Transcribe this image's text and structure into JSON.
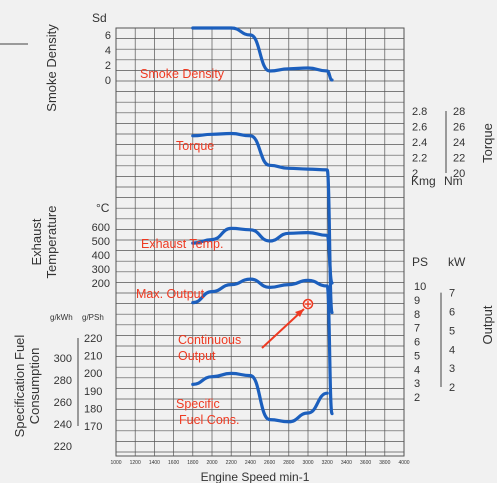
{
  "chart_data": {
    "type": "line",
    "title": "",
    "x_axis": {
      "label": "Engine Speed min-1",
      "ticks": [
        1000,
        1200,
        1400,
        1600,
        1800,
        2000,
        2200,
        2400,
        2600,
        2800,
        3000,
        3200,
        3400,
        3600,
        3800,
        4000
      ],
      "tick_labels": [
        "1000",
        "1200",
        "1400",
        "1600",
        "1800",
        "2000",
        "2200",
        "2400",
        "2600",
        "2800",
        "3000",
        "3200",
        "3400",
        "3600",
        "3800",
        "4000"
      ],
      "range": [
        1000,
        4000
      ]
    },
    "panels": {
      "smoke": {
        "label": "Smoke Density",
        "unit": "Sd",
        "ticks": [
          "6",
          "4",
          "2",
          "0"
        ]
      },
      "torque": {
        "label": "Torque",
        "unit_kgm": "Kmg",
        "unit_nm": "Nm",
        "kgm_ticks": [
          "2.8",
          "2.6",
          "2.4",
          "2.2",
          "2"
        ],
        "nm_ticks": [
          "28",
          "26",
          "24",
          "22",
          "20"
        ]
      },
      "exhaust": {
        "label_line1": "Exhaust",
        "label_line2": "Temperature",
        "unit": "°C",
        "ticks": [
          "600",
          "500",
          "400",
          "300",
          "200"
        ]
      },
      "output": {
        "label": "Output",
        "unit_ps": "PS",
        "unit_kw": "kW",
        "ps_ticks": [
          "10",
          "9",
          "8",
          "7",
          "6",
          "5",
          "4",
          "3",
          "2"
        ],
        "kw_ticks": [
          "7",
          "6",
          "5",
          "4",
          "3",
          "2"
        ]
      },
      "fuel": {
        "label_line1": "Specification Fuel",
        "label_line2": "Consumption",
        "unit_kwh": "g/kWh",
        "unit_psh": "g/PSh",
        "kwh_ticks": [
          "300",
          "280",
          "260",
          "240",
          "220"
        ],
        "psh_ticks": [
          "220",
          "210",
          "200",
          "190",
          "180",
          "170"
        ]
      }
    },
    "annotations": {
      "smoke": "Smoke Density",
      "torque": "Torque",
      "exhaust": "Exhaust Temp.",
      "max_output": "Max. Output",
      "continuous_line1": "Continuous",
      "continuous_line2": "Output",
      "fuel_line1": "Specific",
      "fuel_line2": "Fuel Cons."
    },
    "series": [
      {
        "key": "smoke",
        "unit": "Sd",
        "x": [
          1800,
          2000,
          2200,
          2400,
          2600,
          2800,
          3000,
          3200,
          3250
        ],
        "y": [
          7,
          7.2,
          7.1,
          6,
          1.2,
          1.5,
          1.6,
          1.2,
          0
        ]
      },
      {
        "key": "torque",
        "unit": "Kgm",
        "x": [
          1800,
          2000,
          2200,
          2400,
          2600,
          2800,
          3000,
          3200,
          3250
        ],
        "y": [
          2.48,
          2.5,
          2.51,
          2.48,
          2.1,
          2.06,
          2.05,
          2.04,
          0.2
        ]
      },
      {
        "key": "exhaust",
        "unit": "°C",
        "x": [
          1800,
          2000,
          2200,
          2400,
          2600,
          2800,
          3000,
          3200,
          3250
        ],
        "y": [
          485,
          510,
          590,
          580,
          500,
          555,
          560,
          540,
          200
        ]
      },
      {
        "key": "max_output",
        "unit": "PS",
        "x": [
          1800,
          2000,
          2200,
          2400,
          2600,
          2800,
          3000,
          3200,
          3250
        ],
        "y": [
          8.8,
          9.6,
          10.1,
          10.5,
          9.9,
          10.1,
          10.4,
          10.0,
          0.8
        ]
      },
      {
        "key": "fuel",
        "unit": "g/kWh",
        "x": [
          1800,
          2000,
          2200,
          2400,
          2600,
          2800,
          3000,
          3200
        ],
        "y": [
          276,
          283,
          286,
          284,
          244,
          242,
          250,
          268
        ]
      }
    ],
    "continuous_output_point": {
      "x": 3000,
      "y": 8.7,
      "unit": "PS"
    },
    "grid": true,
    "colors": {
      "series": "#1c5fbd",
      "annotation": "#ee3a22",
      "grid": "#555555"
    }
  }
}
